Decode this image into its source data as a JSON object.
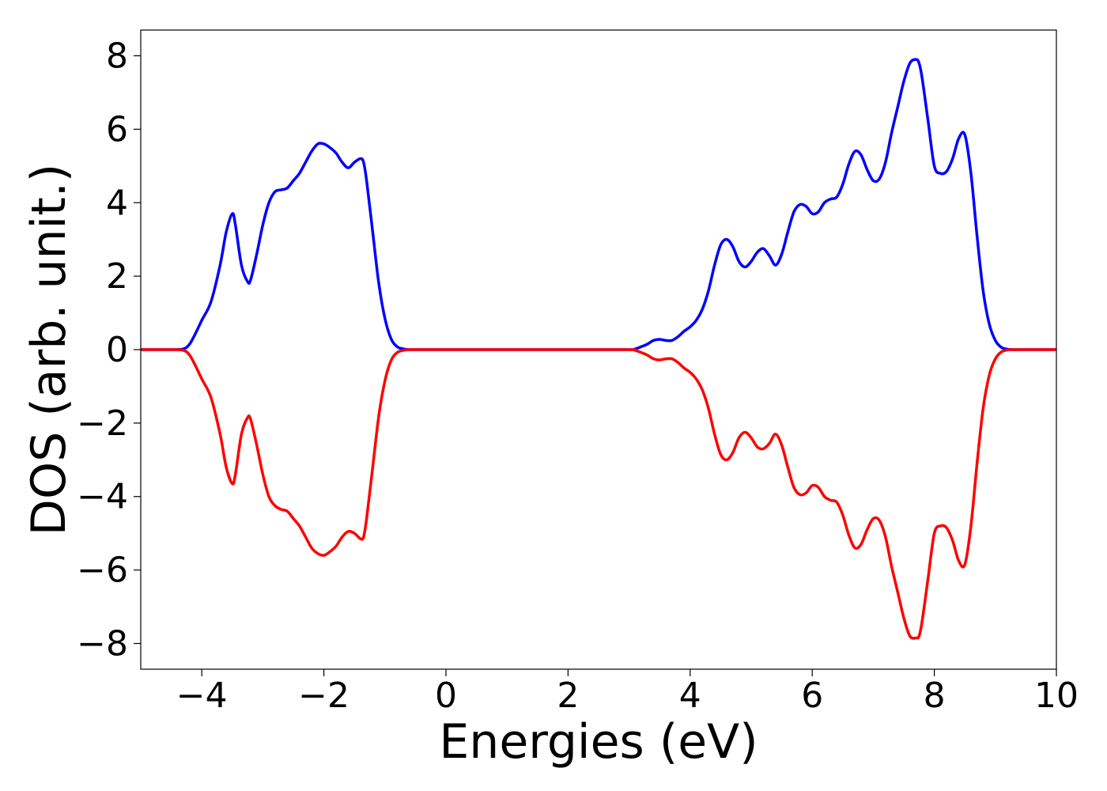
{
  "chart_data": {
    "type": "line",
    "title": "",
    "xlabel": "Energies (eV)",
    "ylabel": "DOS (arb. unit.)",
    "xlim": [
      -5,
      10
    ],
    "ylim": [
      -8.7,
      8.7
    ],
    "xticks": [
      -4,
      -2,
      0,
      2,
      4,
      6,
      8,
      10
    ],
    "yticks": [
      -8,
      -6,
      -4,
      -2,
      0,
      2,
      4,
      6,
      8
    ],
    "xtick_labels": [
      "−4",
      "−2",
      "0",
      "2",
      "4",
      "6",
      "8",
      "10"
    ],
    "ytick_labels": [
      "−8",
      "−6",
      "−4",
      "−2",
      "0",
      "2",
      "4",
      "6",
      "8"
    ],
    "grid": false,
    "legend": "none",
    "series": [
      {
        "color": "#0000ff",
        "x": [
          -5.0,
          -4.5,
          -4.3,
          -4.2,
          -4.1,
          -4.0,
          -3.85,
          -3.7,
          -3.6,
          -3.5,
          -3.45,
          -3.35,
          -3.25,
          -3.2,
          -3.1,
          -3.0,
          -2.9,
          -2.8,
          -2.7,
          -2.6,
          -2.5,
          -2.4,
          -2.3,
          -2.2,
          -2.1,
          -2.0,
          -1.9,
          -1.8,
          -1.7,
          -1.6,
          -1.5,
          -1.4,
          -1.35,
          -1.3,
          -1.2,
          -1.1,
          -1.0,
          -0.9,
          -0.8,
          -0.7,
          -0.6,
          -0.5,
          0.0,
          1.0,
          2.0,
          3.0,
          3.1,
          3.2,
          3.3,
          3.4,
          3.5,
          3.6,
          3.7,
          3.8,
          3.9,
          4.0,
          4.1,
          4.2,
          4.3,
          4.4,
          4.5,
          4.6,
          4.7,
          4.8,
          4.9,
          5.0,
          5.1,
          5.2,
          5.3,
          5.4,
          5.5,
          5.6,
          5.7,
          5.8,
          5.9,
          6.0,
          6.1,
          6.2,
          6.3,
          6.4,
          6.5,
          6.6,
          6.7,
          6.8,
          6.9,
          7.0,
          7.1,
          7.2,
          7.3,
          7.4,
          7.5,
          7.6,
          7.7,
          7.75,
          7.8,
          7.9,
          8.0,
          8.1,
          8.2,
          8.3,
          8.4,
          8.5,
          8.6,
          8.7,
          8.8,
          8.9,
          9.0,
          9.1,
          9.2,
          9.3,
          9.5,
          10.0
        ],
        "values": [
          0.0,
          0.0,
          0.02,
          0.15,
          0.45,
          0.8,
          1.3,
          2.3,
          3.2,
          3.7,
          3.4,
          2.3,
          1.85,
          1.9,
          2.6,
          3.4,
          4.0,
          4.3,
          4.35,
          4.4,
          4.6,
          4.8,
          5.1,
          5.4,
          5.6,
          5.6,
          5.5,
          5.35,
          5.1,
          4.95,
          5.1,
          5.2,
          5.1,
          4.6,
          3.2,
          1.8,
          0.85,
          0.3,
          0.08,
          0.02,
          0.0,
          0.0,
          0.0,
          0.0,
          0.0,
          0.0,
          0.02,
          0.08,
          0.15,
          0.25,
          0.28,
          0.25,
          0.25,
          0.35,
          0.5,
          0.62,
          0.8,
          1.1,
          1.6,
          2.3,
          2.85,
          3.0,
          2.8,
          2.4,
          2.25,
          2.4,
          2.65,
          2.75,
          2.55,
          2.3,
          2.6,
          3.2,
          3.75,
          3.95,
          3.9,
          3.7,
          3.75,
          4.0,
          4.1,
          4.15,
          4.5,
          5.05,
          5.4,
          5.3,
          4.9,
          4.6,
          4.65,
          5.1,
          5.9,
          6.6,
          7.3,
          7.8,
          7.9,
          7.8,
          7.4,
          6.2,
          5.0,
          4.8,
          4.85,
          5.2,
          5.75,
          5.85,
          4.8,
          3.1,
          1.6,
          0.7,
          0.25,
          0.06,
          0.01,
          0.0,
          0.0,
          0.0
        ]
      },
      {
        "color": "#ff0000",
        "x": [
          -5.0,
          -4.5,
          -4.3,
          -4.2,
          -4.1,
          -4.0,
          -3.85,
          -3.7,
          -3.6,
          -3.5,
          -3.45,
          -3.35,
          -3.25,
          -3.2,
          -3.1,
          -3.0,
          -2.9,
          -2.8,
          -2.7,
          -2.6,
          -2.5,
          -2.4,
          -2.3,
          -2.2,
          -2.1,
          -2.0,
          -1.9,
          -1.8,
          -1.7,
          -1.6,
          -1.5,
          -1.4,
          -1.35,
          -1.3,
          -1.2,
          -1.1,
          -1.0,
          -0.9,
          -0.8,
          -0.7,
          -0.6,
          -0.5,
          0.0,
          1.0,
          2.0,
          3.0,
          3.1,
          3.2,
          3.3,
          3.4,
          3.5,
          3.6,
          3.7,
          3.8,
          3.9,
          4.0,
          4.1,
          4.2,
          4.3,
          4.4,
          4.5,
          4.6,
          4.7,
          4.8,
          4.9,
          5.0,
          5.1,
          5.2,
          5.3,
          5.4,
          5.5,
          5.6,
          5.7,
          5.8,
          5.9,
          6.0,
          6.1,
          6.2,
          6.3,
          6.4,
          6.5,
          6.6,
          6.7,
          6.8,
          6.9,
          7.0,
          7.1,
          7.2,
          7.3,
          7.4,
          7.5,
          7.6,
          7.7,
          7.75,
          7.8,
          7.9,
          8.0,
          8.1,
          8.2,
          8.3,
          8.4,
          8.5,
          8.6,
          8.7,
          8.8,
          8.9,
          9.0,
          9.1,
          9.2,
          9.3,
          9.5,
          10.0
        ],
        "values": [
          0.0,
          0.0,
          -0.02,
          -0.15,
          -0.45,
          -0.8,
          -1.3,
          -2.3,
          -3.2,
          -3.65,
          -3.4,
          -2.3,
          -1.85,
          -1.9,
          -2.6,
          -3.4,
          -4.0,
          -4.25,
          -4.35,
          -4.4,
          -4.6,
          -4.8,
          -5.1,
          -5.4,
          -5.55,
          -5.6,
          -5.5,
          -5.35,
          -5.1,
          -4.95,
          -5.0,
          -5.15,
          -5.1,
          -4.6,
          -3.2,
          -1.8,
          -0.85,
          -0.3,
          -0.08,
          -0.02,
          0.0,
          0.0,
          0.0,
          0.0,
          0.0,
          0.0,
          -0.02,
          -0.08,
          -0.15,
          -0.25,
          -0.28,
          -0.25,
          -0.25,
          -0.35,
          -0.5,
          -0.62,
          -0.8,
          -1.1,
          -1.6,
          -2.3,
          -2.85,
          -3.0,
          -2.8,
          -2.4,
          -2.25,
          -2.4,
          -2.65,
          -2.7,
          -2.55,
          -2.3,
          -2.6,
          -3.2,
          -3.75,
          -3.95,
          -3.9,
          -3.7,
          -3.75,
          -4.0,
          -4.1,
          -4.15,
          -4.5,
          -5.05,
          -5.4,
          -5.3,
          -4.9,
          -4.6,
          -4.65,
          -5.1,
          -5.9,
          -6.6,
          -7.3,
          -7.8,
          -7.85,
          -7.8,
          -7.4,
          -6.2,
          -5.0,
          -4.8,
          -4.85,
          -5.2,
          -5.75,
          -5.85,
          -4.8,
          -3.1,
          -1.6,
          -0.7,
          -0.25,
          -0.06,
          -0.01,
          0.0,
          0.0,
          0.0
        ]
      }
    ]
  }
}
